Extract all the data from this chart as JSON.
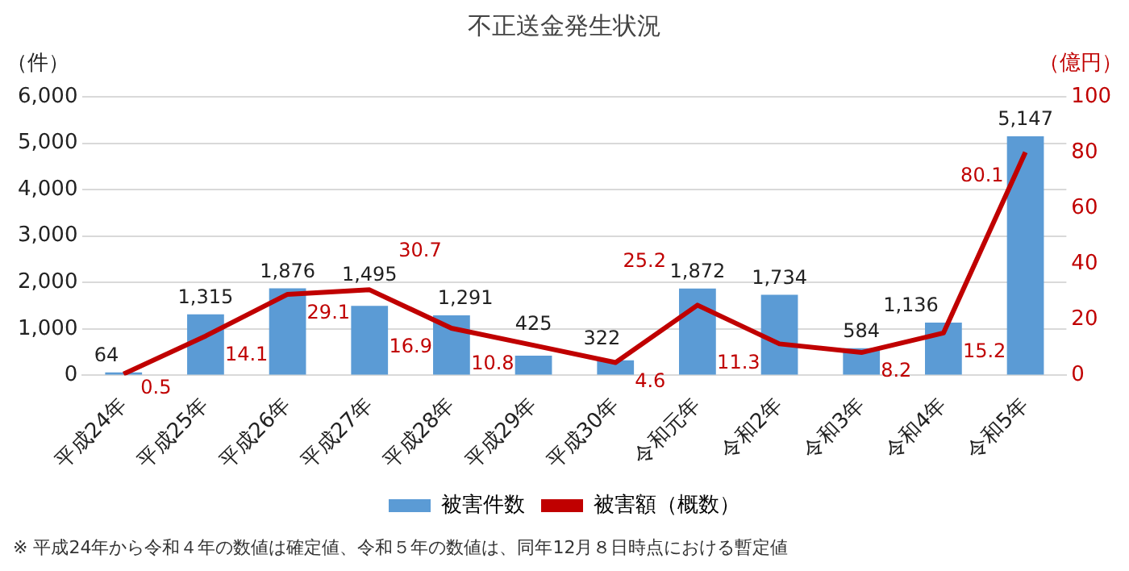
{
  "chart_data": {
    "type": "bar",
    "title": "不正送金発生状況",
    "ylabel": "（件）",
    "y2label": "（億円）",
    "categories": [
      "平成24年",
      "平成25年",
      "平成26年",
      "平成27年",
      "平成28年",
      "平成29年",
      "平成30年",
      "令和元年",
      "令和2年",
      "令和3年",
      "令和4年",
      "令和5年"
    ],
    "series": [
      {
        "name": "被害件数",
        "type": "bar",
        "color": "#5b9bd5",
        "values": [
          64,
          1315,
          1876,
          1495,
          1291,
          425,
          322,
          1872,
          1734,
          584,
          1136,
          5147
        ],
        "value_labels": [
          "64",
          "1,315",
          "1,876",
          "1,495",
          "1,291",
          "425",
          "322",
          "1,872",
          "1,734",
          "584",
          "1,136",
          "5,147"
        ]
      },
      {
        "name": "被害額（概数）",
        "type": "line",
        "axis": "y2",
        "color": "#c00000",
        "values": [
          0.5,
          14.1,
          29.1,
          30.7,
          16.9,
          10.8,
          4.6,
          25.2,
          11.3,
          8.2,
          15.2,
          80.1
        ],
        "value_labels": [
          "0.5",
          "14.1",
          "29.1",
          "30.7",
          "16.9",
          "10.8",
          "4.6",
          "25.2",
          "11.3",
          "8.2",
          "15.2",
          "80.1"
        ]
      }
    ],
    "ylim": [
      0,
      6000
    ],
    "yticks": [
      0,
      {
        "value": 1000,
        "label": "1,000"
      },
      {
        "value": 2000,
        "label": "2,000"
      },
      {
        "value": 3000,
        "label": "3,000"
      },
      {
        "value": 4000,
        "label": "4,000"
      },
      {
        "value": 5000,
        "label": "5,000"
      },
      {
        "value": 6000,
        "label": "6,000"
      }
    ],
    "y2lim": [
      0,
      100
    ],
    "y2ticks": [
      0,
      20,
      40,
      60,
      80,
      100
    ],
    "grid": "y",
    "legend": "bottom",
    "marker": "none",
    "line_style": "solid",
    "annotations": [
      "※ 平成24年から令和４年の数値は確定値、令和５年の数値は、同年12月８日時点における暫定値"
    ]
  }
}
